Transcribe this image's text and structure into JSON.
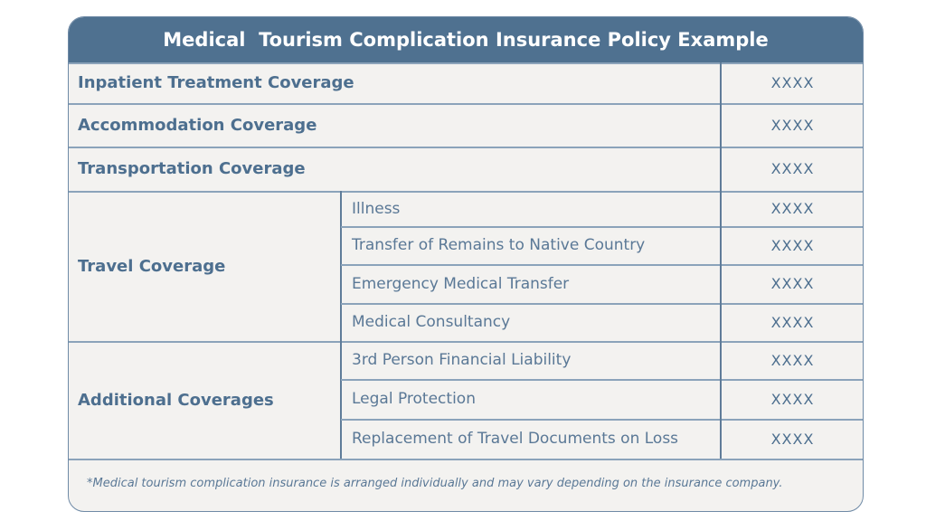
{
  "title": "Medical  Tourism Complication Insurance Policy Example",
  "rows": [
    {
      "label": "Inpatient Treatment Coverage",
      "value": "XXXX"
    },
    {
      "label": "Accommodation Coverage",
      "value": "XXXX"
    },
    {
      "label": "Transportation Coverage",
      "value": "XXXX"
    }
  ],
  "groups": [
    {
      "label": "Travel Coverage",
      "items": [
        {
          "label": "Illness",
          "value": "XXXX"
        },
        {
          "label": "Transfer of Remains to Native Country",
          "value": "XXXX"
        },
        {
          "label": "Emergency Medical Transfer",
          "value": "XXXX"
        },
        {
          "label": "Medical Consultancy",
          "value": "XXXX"
        }
      ]
    },
    {
      "label": "Additional Coverages",
      "items": [
        {
          "label": "3rd Person Financial Liability",
          "value": "XXXX"
        },
        {
          "label": "Legal Protection",
          "value": "XXXX"
        },
        {
          "label": "Replacement of Travel Documents on Loss",
          "value": "XXXX"
        }
      ]
    }
  ],
  "footnote": "*Medical tourism complication insurance is arranged individually and may vary depending on the insurance company."
}
